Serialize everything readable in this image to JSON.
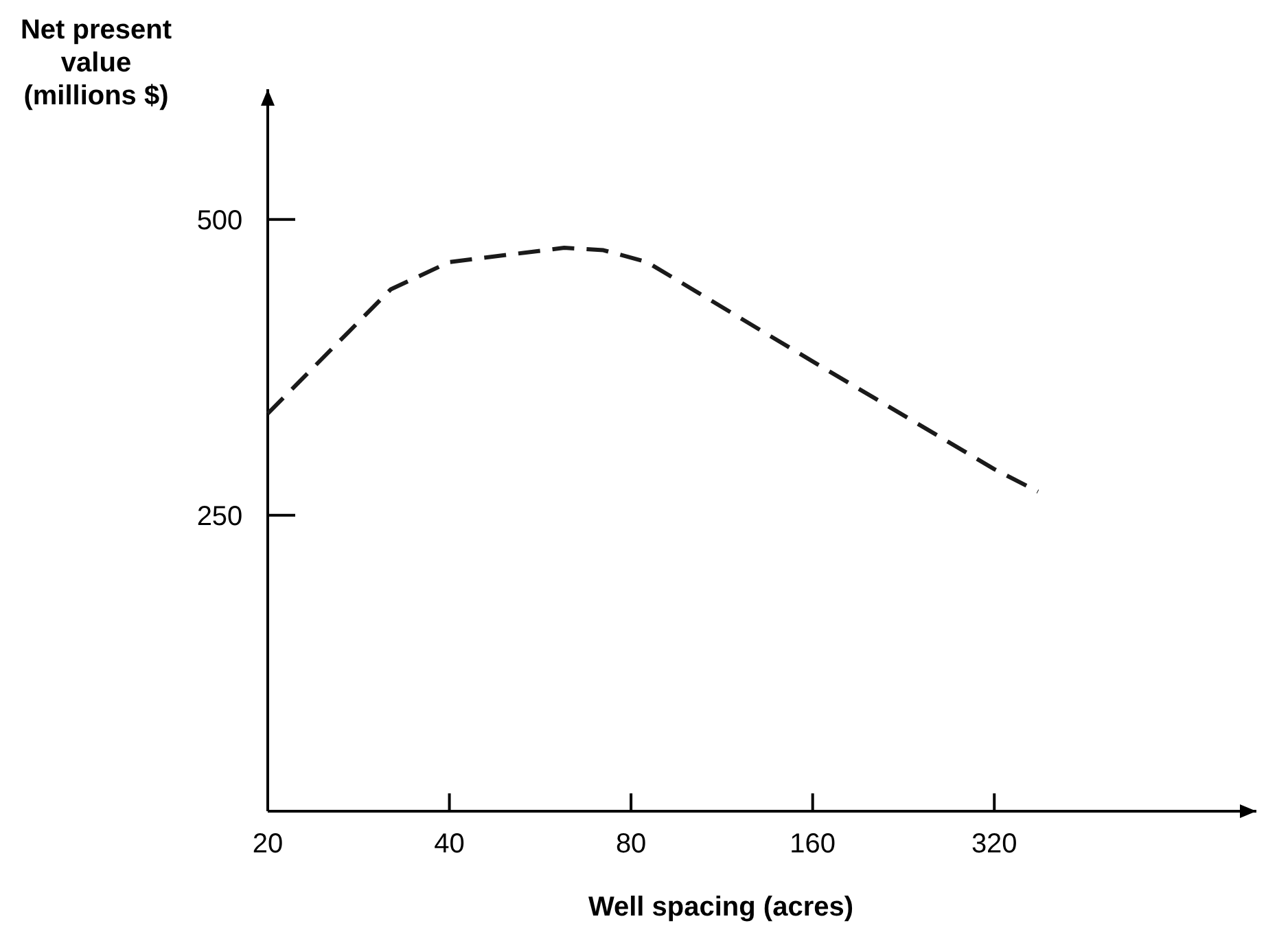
{
  "chart_data": {
    "type": "line",
    "xlabel": "Well spacing (acres)",
    "ylabel": "Net present\nvalue\n(millions $)",
    "log": "x",
    "xlim": [
      20,
      870
    ],
    "xticks": [
      20,
      40,
      80,
      160,
      320
    ],
    "ylim": [
      0,
      610
    ],
    "yticks": [
      250,
      500
    ],
    "grid": false,
    "marker": "none",
    "line_style": "dashed",
    "series": [
      {
        "color": "#1a1a1a",
        "x": [
          20,
          32,
          40,
          62,
          72,
          85,
          160,
          320,
          378
        ],
        "values": [
          336,
          441,
          464,
          476,
          474,
          464,
          380,
          289,
          270
        ]
      }
    ]
  }
}
